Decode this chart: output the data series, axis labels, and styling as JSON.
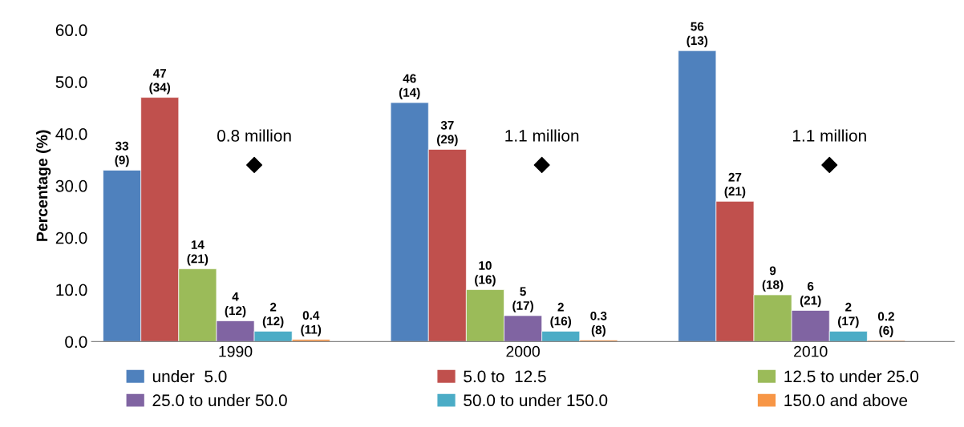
{
  "chart_data": {
    "type": "bar",
    "ylabel": "Percentage (%)",
    "categories": [
      "1990",
      "2000",
      "2010"
    ],
    "series": [
      {
        "name": "under  5.0",
        "color": "#4f81bd",
        "values": [
          33,
          46,
          56
        ],
        "value_labels": [
          "33\n(9)",
          "46\n(14)",
          "56\n(13)"
        ]
      },
      {
        "name": "5.0 to  12.5",
        "color": "#c0504d",
        "values": [
          47,
          37,
          27
        ],
        "value_labels": [
          "47\n(34)",
          "37\n(29)",
          "27\n(21)"
        ]
      },
      {
        "name": "12.5 to under 25.0",
        "color": "#9bbb59",
        "values": [
          14,
          10,
          9
        ],
        "value_labels": [
          "14\n(21)",
          "10\n(16)",
          "9\n(18)"
        ]
      },
      {
        "name": "25.0 to under 50.0",
        "color": "#8064a2",
        "values": [
          4,
          5,
          6
        ],
        "value_labels": [
          "4\n(12)",
          "5\n(17)",
          "6\n(21)"
        ]
      },
      {
        "name": "50.0 to under 150.0",
        "color": "#4bacc6",
        "values": [
          2,
          2,
          2
        ],
        "value_labels": [
          "2\n(12)",
          "2\n(16)",
          "2\n(17)"
        ]
      },
      {
        "name": "150.0 and above",
        "color": "#f79646",
        "values": [
          0.4,
          0.3,
          0.2
        ],
        "value_labels": [
          "0.4\n(11)",
          "0.3\n(8)",
          "0.2\n(6)"
        ]
      },
      {
        "type": "scatter",
        "marker": "diamond",
        "color": "#000000",
        "values": [
          34,
          34,
          34
        ]
      }
    ],
    "annotations": [
      "0.8 million",
      "1.1 million",
      "1.1 million"
    ],
    "ylim": [
      0,
      60
    ],
    "yticks": [
      {
        "value": 0,
        "label": "0.0"
      },
      {
        "value": 10,
        "label": "10.0"
      },
      {
        "value": 20,
        "label": "20.0"
      },
      {
        "value": 30,
        "label": "30.0"
      },
      {
        "value": 40,
        "label": "40.0"
      },
      {
        "value": 50,
        "label": "50.0"
      },
      {
        "value": 60,
        "label": "60.0"
      }
    ],
    "grid": false,
    "legend": "bottom"
  }
}
